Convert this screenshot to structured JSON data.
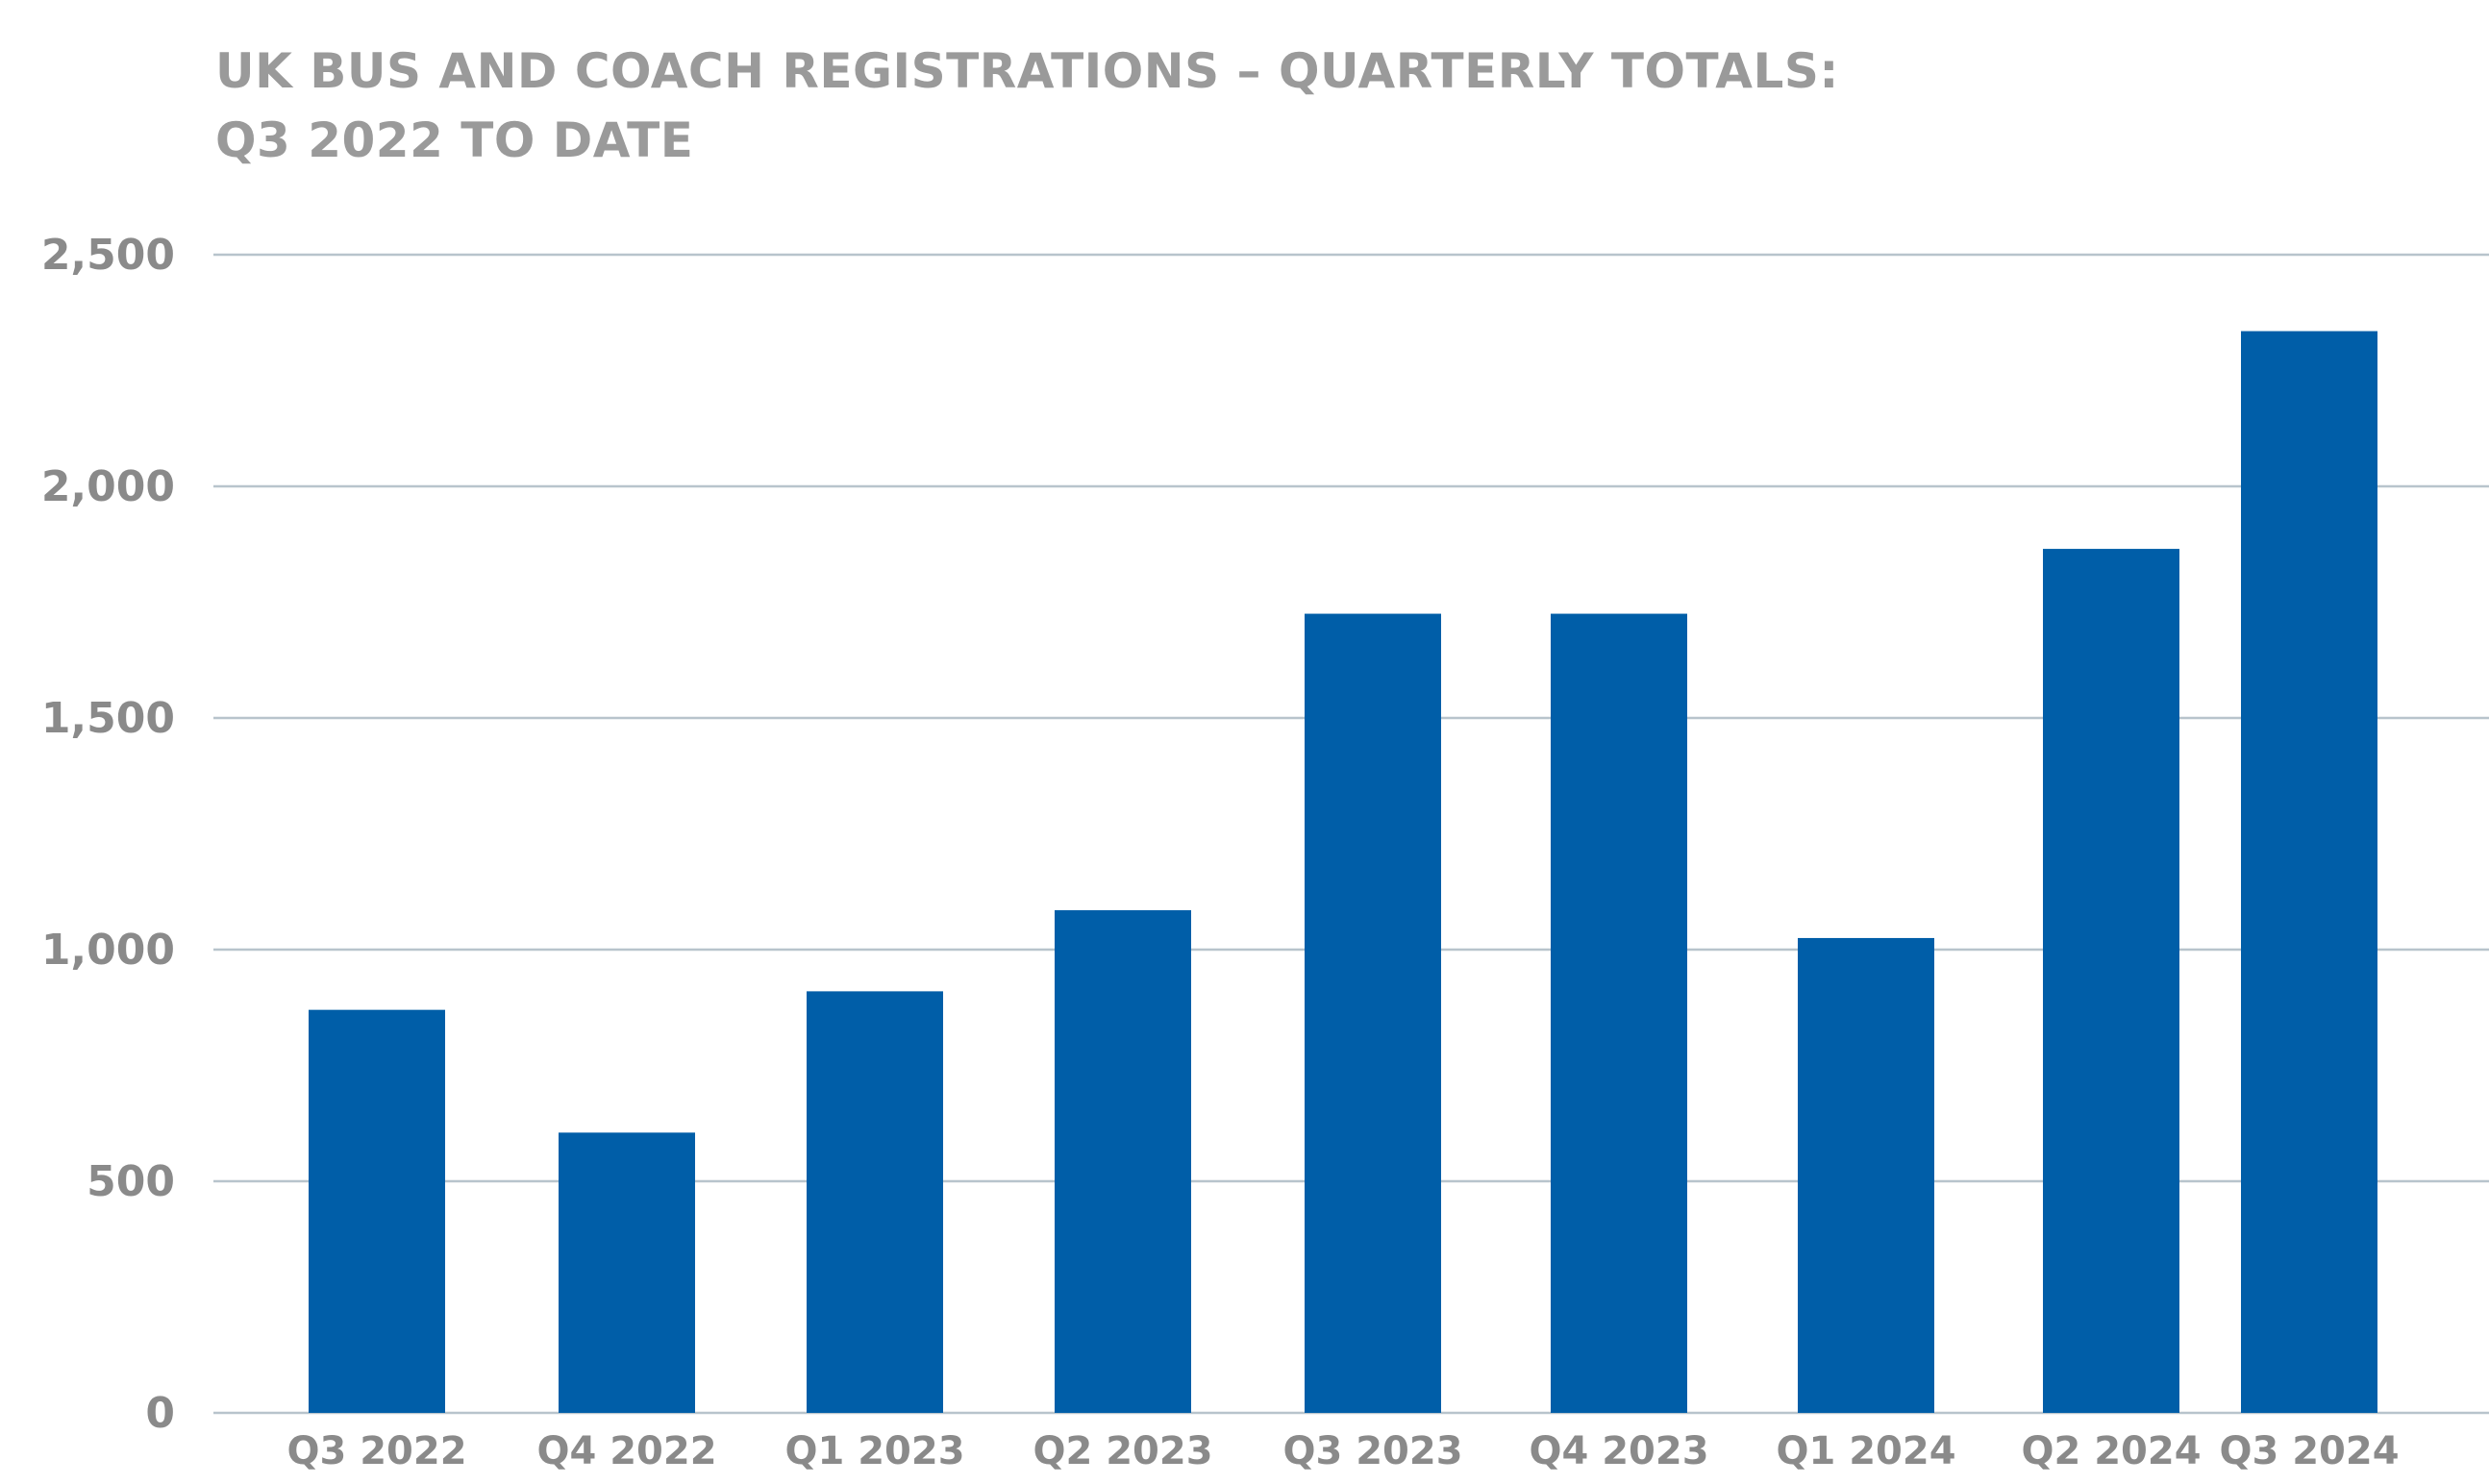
{
  "chart_data": {
    "type": "bar",
    "title": "UK BUS AND COACH REGISTRATIONS – QUARTERLY TOTALS:",
    "subtitle": "Q3 2022 TO DATE",
    "xlabel": "",
    "ylabel": "",
    "categories": [
      "Q3 2022",
      "Q4 2022",
      "Q1 2023",
      "Q2 2023",
      "Q3 2023",
      "Q4 2023",
      "Q1 2024",
      "Q2 2024",
      "Q3 2024"
    ],
    "values": [
      870,
      605,
      910,
      1085,
      1725,
      1725,
      1025,
      1865,
      2335
    ],
    "ylim": [
      0,
      2500
    ],
    "yticks": [
      0,
      500,
      1000,
      1500,
      2000,
      2500
    ],
    "ytick_labels": [
      "0",
      "500",
      "1,000",
      "1,500",
      "2,000",
      "2,500"
    ],
    "grid": true,
    "legend": "none",
    "colors": {
      "bar": "#005ea8",
      "grid": "#b8c4cc",
      "text": "#8a8a8a",
      "title": "#9a9a9a"
    }
  }
}
